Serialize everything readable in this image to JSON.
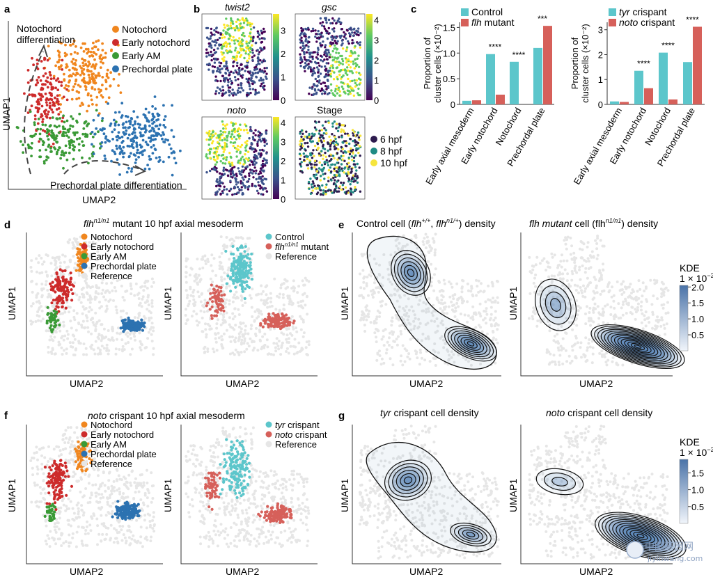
{
  "colors": {
    "notochord": "#f0861e",
    "early_notochord": "#cd2b2b",
    "early_am": "#3a9a36",
    "prechordal_plate": "#2c72b1",
    "reference": "#e6e6e6",
    "control": "#5cc6cb",
    "mutant": "#d6605a",
    "stage_6": "#2d1b4e",
    "stage_8": "#1f8a84",
    "stage_10": "#f6e53d",
    "kde_fill": "#5b86b8"
  },
  "panel_letters": {
    "a": "a",
    "b": "b",
    "c": "c",
    "d": "d",
    "e": "e",
    "f": "f",
    "g": "g"
  },
  "panel_a": {
    "legend": [
      "Notochord",
      "Early notochord",
      "Early AM",
      "Prechordal plate"
    ],
    "arrow_top_label_1": "Notochord",
    "arrow_top_label_2": "differentiation",
    "arrow_bottom_label": "Prechordal plate differentiation",
    "xlabel": "UMAP2",
    "ylabel": "UMAP1"
  },
  "panel_b": {
    "titles": [
      "twist2",
      "gsc",
      "noto",
      "Stage"
    ],
    "colorbar_ticks": [
      [
        "3",
        "2",
        "1",
        "0"
      ],
      [
        "4",
        "3",
        "2",
        "1",
        "0"
      ],
      [
        "4",
        "3",
        "2",
        "1",
        "0"
      ]
    ],
    "stage_legend": [
      "6 hpf",
      "8 hpf",
      "10 hpf"
    ]
  },
  "panel_d": {
    "title_gene": "flh",
    "title_sup": "n1/n1",
    "title_rest": " mutant 10 hpf axial mesoderm",
    "legend_left": [
      "Notochord",
      "Early notochord",
      "Early AM",
      "Prechordal plate",
      "Reference"
    ],
    "legend_right": [
      "Control",
      "mutant",
      "Reference"
    ],
    "legend_right_gene": "flh",
    "legend_right_sup": "n1/n1",
    "xlabel": "UMAP2",
    "ylabel": "UMAP1"
  },
  "panel_e": {
    "title_left": "Control cell (flh+/+, flhn1/+) density",
    "title_right_a": "flh mutant",
    "title_right_b": " cell (flh",
    "title_right_sup": "n1/n1",
    "title_right_c": ") density",
    "kde_title": "KDE",
    "kde_scale": "1 × 10",
    "kde_scale_exp": "−2",
    "kde_ticks": [
      "2.0",
      "1.5",
      "1.0",
      "0.5"
    ],
    "xlabel": "UMAP2",
    "ylabel": "UMAP1"
  },
  "panel_f": {
    "title_gene": "noto",
    "title_rest": " crispant 10 hpf axial mesoderm",
    "legend_left": [
      "Notochord",
      "Early notochord",
      "Early AM",
      "Prechordal plate",
      "Reference"
    ],
    "legend_right": [
      "tyr crispant",
      "noto crispant",
      "Reference"
    ],
    "xlabel": "UMAP2",
    "ylabel": "UMAP1"
  },
  "panel_g": {
    "title_left_gene": "tyr",
    "title_left_rest": " crispant cell density",
    "title_right_gene": "noto",
    "title_right_rest": " crispant cell density",
    "kde_title": "KDE",
    "kde_scale": "1 × 10",
    "kde_scale_exp": "−2",
    "kde_ticks": [
      "1.5",
      "1.0",
      "0.5"
    ],
    "xlabel": "UMAP2",
    "ylabel": "UMAP1"
  },
  "watermark": {
    "line1": "中国基因网",
    "line2": "jiyinwang.com"
  },
  "chart_data": [
    {
      "type": "bar",
      "panel": "c-left",
      "categories": [
        "Early axial mesoderm",
        "Early notochord",
        "Notochord",
        "Prechordal plate"
      ],
      "series": [
        {
          "name": "Control",
          "values": [
            0.07,
            0.98,
            0.83,
            1.1
          ]
        },
        {
          "name": "flh mutant",
          "values": [
            0.08,
            0.19,
            0.0,
            1.53
          ]
        }
      ],
      "significance": [
        "",
        "****",
        "****",
        "***"
      ],
      "ylabel": "Proportion of cluster cells (×10−2)",
      "ylim": [
        0,
        1.6
      ],
      "yticks": [
        "0",
        "0.5",
        "1.0",
        "1.5"
      ],
      "legend": "top-left"
    },
    {
      "type": "bar",
      "panel": "c-right",
      "categories": [
        "Early axial mesoderm",
        "Early notochord",
        "Notochord",
        "Prechordal plate"
      ],
      "series": [
        {
          "name": "tyr crispant",
          "values": [
            0.12,
            1.35,
            2.08,
            1.7
          ]
        },
        {
          "name": "noto crispant",
          "values": [
            0.1,
            0.65,
            0.2,
            3.12
          ]
        }
      ],
      "significance": [
        "",
        "****",
        "****",
        "****"
      ],
      "ylabel": "Proportion of cluster cells (×10−2)",
      "ylim": [
        0,
        3.3
      ],
      "yticks": [
        "0",
        "1",
        "2",
        "3"
      ],
      "legend": "top-left"
    }
  ]
}
